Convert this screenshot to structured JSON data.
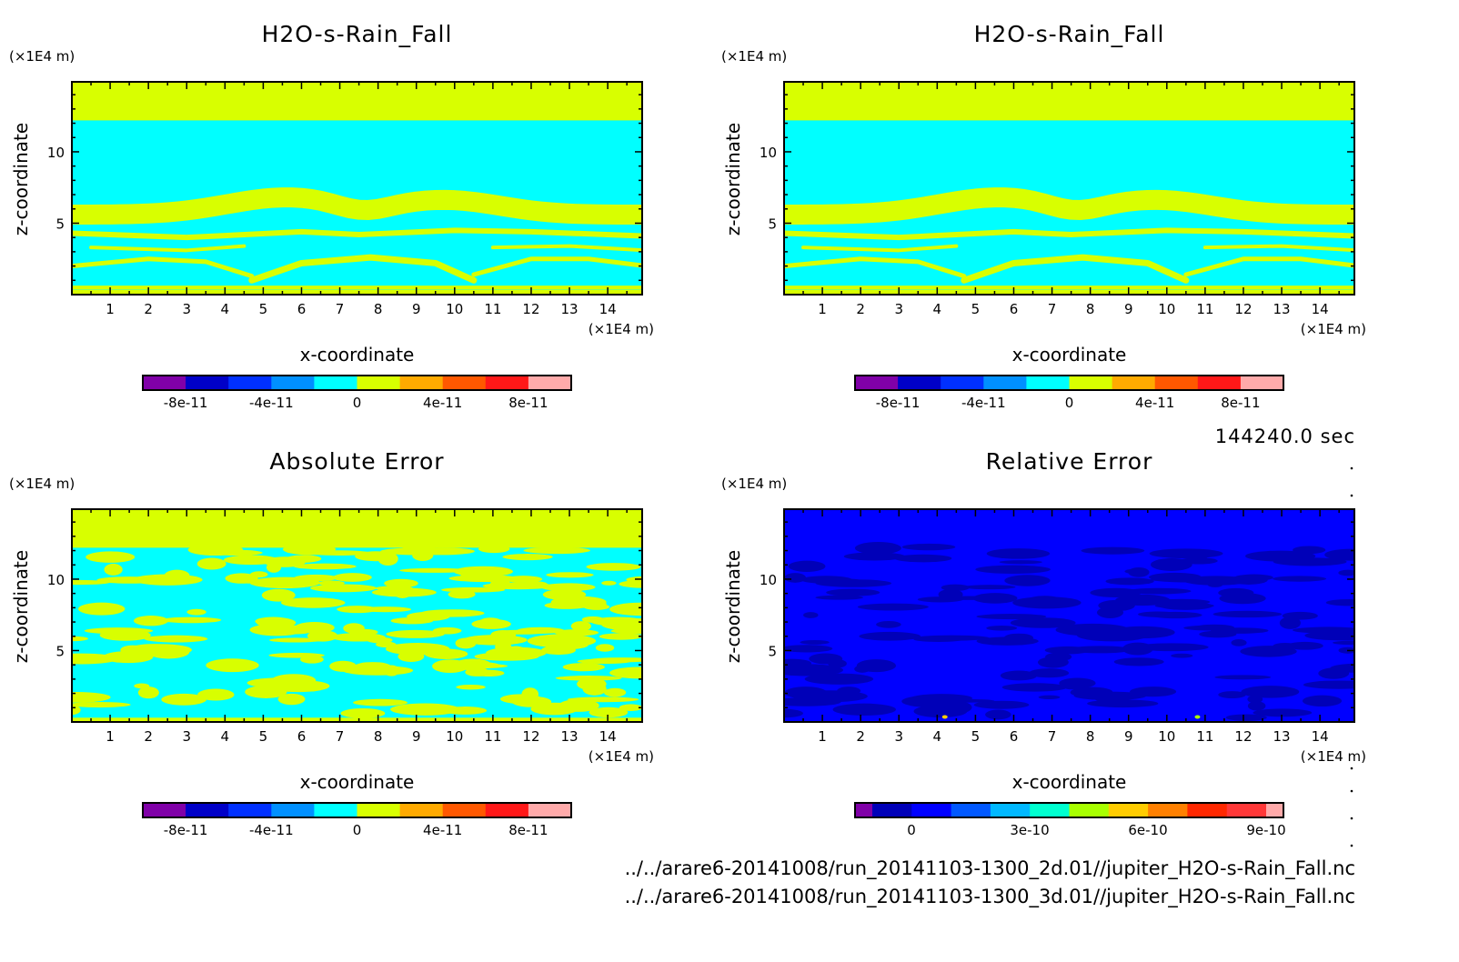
{
  "chart_data": [
    {
      "type": "heatmap",
      "title": "H2O-s-Rain_Fall",
      "xlabel": "x-coordinate",
      "ylabel": "z-coordinate",
      "x_unit": "(×1E4 m)",
      "y_unit": "(×1E4 m)",
      "xlim": [
        0,
        14.9
      ],
      "ylim": [
        0,
        14.9
      ],
      "xticks": [
        "1",
        "2",
        "3",
        "4",
        "5",
        "6",
        "7",
        "8",
        "9",
        "10",
        "11",
        "12",
        "13",
        "14"
      ],
      "yticks": [
        "5",
        "10"
      ],
      "colorbar": {
        "colors": [
          "#8000a8",
          "#0000c8",
          "#0030ff",
          "#0090ff",
          "#00ffff",
          "#d8ff00",
          "#ffaa00",
          "#ff5800",
          "#ff1818",
          "#ffaaaa"
        ],
        "labels": [
          "-8e-11",
          "-4e-11",
          "0",
          "4e-11",
          "8e-11"
        ],
        "range": [
          -1e-10,
          1e-10
        ]
      },
      "field": "mostly cyan (~0) between z=0.3 and z=12.2, yellow (~0 to 2e-11) above and in wavy bands"
    },
    {
      "type": "heatmap",
      "title": "H2O-s-Rain_Fall",
      "xlabel": "x-coordinate",
      "ylabel": "z-coordinate",
      "x_unit": "(×1E4 m)",
      "y_unit": "(×1E4 m)",
      "xlim": [
        0,
        14.9
      ],
      "ylim": [
        0,
        14.9
      ],
      "xticks": [
        "1",
        "2",
        "3",
        "4",
        "5",
        "6",
        "7",
        "8",
        "9",
        "10",
        "11",
        "12",
        "13",
        "14"
      ],
      "yticks": [
        "5",
        "10"
      ],
      "colorbar": {
        "colors": [
          "#8000a8",
          "#0000c8",
          "#0030ff",
          "#0090ff",
          "#00ffff",
          "#d8ff00",
          "#ffaa00",
          "#ff5800",
          "#ff1818",
          "#ffaaaa"
        ],
        "labels": [
          "-8e-11",
          "-4e-11",
          "0",
          "4e-11",
          "8e-11"
        ],
        "range": [
          -1e-10,
          1e-10
        ]
      }
    },
    {
      "type": "heatmap",
      "title": "Absolute Error",
      "xlabel": "x-coordinate",
      "ylabel": "z-coordinate",
      "x_unit": "(×1E4 m)",
      "y_unit": "(×1E4 m)",
      "xlim": [
        0,
        14.9
      ],
      "ylim": [
        0,
        14.9
      ],
      "xticks": [
        "1",
        "2",
        "3",
        "4",
        "5",
        "6",
        "7",
        "8",
        "9",
        "10",
        "11",
        "12",
        "13",
        "14"
      ],
      "yticks": [
        "5",
        "10"
      ],
      "colorbar": {
        "colors": [
          "#8000a8",
          "#0000c8",
          "#0030ff",
          "#0090ff",
          "#00ffff",
          "#d8ff00",
          "#ffaa00",
          "#ff5800",
          "#ff1818",
          "#ffaaaa"
        ],
        "labels": [
          "-8e-11",
          "-4e-11",
          "0",
          "4e-11",
          "8e-11"
        ],
        "range": [
          -1e-10,
          1e-10
        ]
      }
    },
    {
      "type": "heatmap",
      "title": "Relative Error",
      "xlabel": "x-coordinate",
      "ylabel": "z-coordinate",
      "x_unit": "(×1E4 m)",
      "y_unit": "(×1E4 m)",
      "xlim": [
        0,
        14.9
      ],
      "ylim": [
        0,
        14.9
      ],
      "xticks": [
        "1",
        "2",
        "3",
        "4",
        "5",
        "6",
        "7",
        "8",
        "9",
        "10",
        "11",
        "12",
        "13",
        "14"
      ],
      "yticks": [
        "5",
        "10"
      ],
      "colorbar": {
        "colors": [
          "#8000a8",
          "#0000b8",
          "#0000ff",
          "#0058ff",
          "#00b8ff",
          "#00ffd0",
          "#a8ff00",
          "#ffcc00",
          "#ff8000",
          "#ff2800",
          "#ff3838",
          "#ffaaaa"
        ],
        "labels": [
          "0",
          "3e-10",
          "6e-10",
          "9e-10"
        ]
      }
    }
  ],
  "time_label": "144240.0 sec",
  "files": [
    "../../arare6-20141008/run_20141103-1300_2d.01//jupiter_H2O-s-Rain_Fall.nc",
    "../../arare6-20141008/run_20141103-1300_3d.01//jupiter_H2O-s-Rain_Fall.nc"
  ]
}
